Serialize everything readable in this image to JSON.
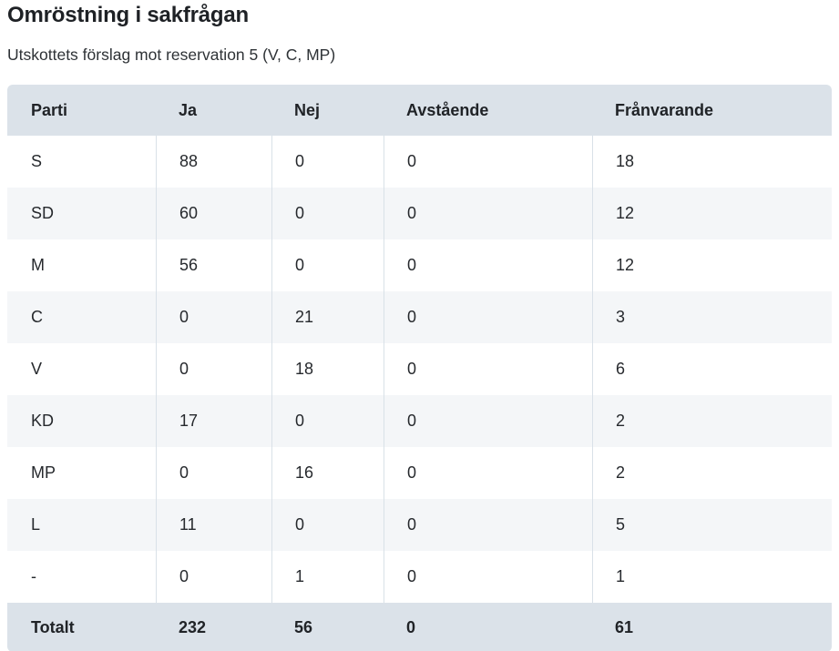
{
  "page": {
    "title": "Omröstning i sakfrågan",
    "subtitle": "Utskottets förslag mot reservation 5 (V, C, MP)"
  },
  "colors": {
    "header_footer_bg": "#dbe2e9",
    "stripe_row_bg": "#f4f6f8",
    "column_divider": "#d9e1e8",
    "text": "#26292d"
  },
  "vote_table": {
    "columns": [
      "Parti",
      "Ja",
      "Nej",
      "Avstående",
      "Frånvarande"
    ],
    "rows": [
      [
        "S",
        "88",
        "0",
        "0",
        "18"
      ],
      [
        "SD",
        "60",
        "0",
        "0",
        "12"
      ],
      [
        "M",
        "56",
        "0",
        "0",
        "12"
      ],
      [
        "C",
        "0",
        "21",
        "0",
        "3"
      ],
      [
        "V",
        "0",
        "18",
        "0",
        "6"
      ],
      [
        "KD",
        "17",
        "0",
        "0",
        "2"
      ],
      [
        "MP",
        "0",
        "16",
        "0",
        "2"
      ],
      [
        "L",
        "11",
        "0",
        "0",
        "5"
      ],
      [
        "-",
        "0",
        "1",
        "0",
        "1"
      ]
    ],
    "total_row": [
      "Totalt",
      "232",
      "56",
      "0",
      "61"
    ]
  },
  "chart_data": {
    "type": "table",
    "title": "Omröstning i sakfrågan",
    "subtitle": "Utskottets förslag mot reservation 5 (V, C, MP)",
    "categories": [
      "Parti",
      "Ja",
      "Nej",
      "Avstående",
      "Frånvarande"
    ],
    "series": [
      {
        "name": "S",
        "values": [
          88,
          0,
          0,
          18
        ]
      },
      {
        "name": "SD",
        "values": [
          60,
          0,
          0,
          12
        ]
      },
      {
        "name": "M",
        "values": [
          56,
          0,
          0,
          12
        ]
      },
      {
        "name": "C",
        "values": [
          0,
          21,
          0,
          3
        ]
      },
      {
        "name": "V",
        "values": [
          0,
          18,
          0,
          6
        ]
      },
      {
        "name": "KD",
        "values": [
          17,
          0,
          0,
          2
        ]
      },
      {
        "name": "MP",
        "values": [
          0,
          16,
          0,
          2
        ]
      },
      {
        "name": "L",
        "values": [
          11,
          0,
          0,
          5
        ]
      },
      {
        "name": "-",
        "values": [
          0,
          1,
          0,
          1
        ]
      },
      {
        "name": "Totalt",
        "values": [
          232,
          56,
          0,
          61
        ]
      }
    ]
  }
}
